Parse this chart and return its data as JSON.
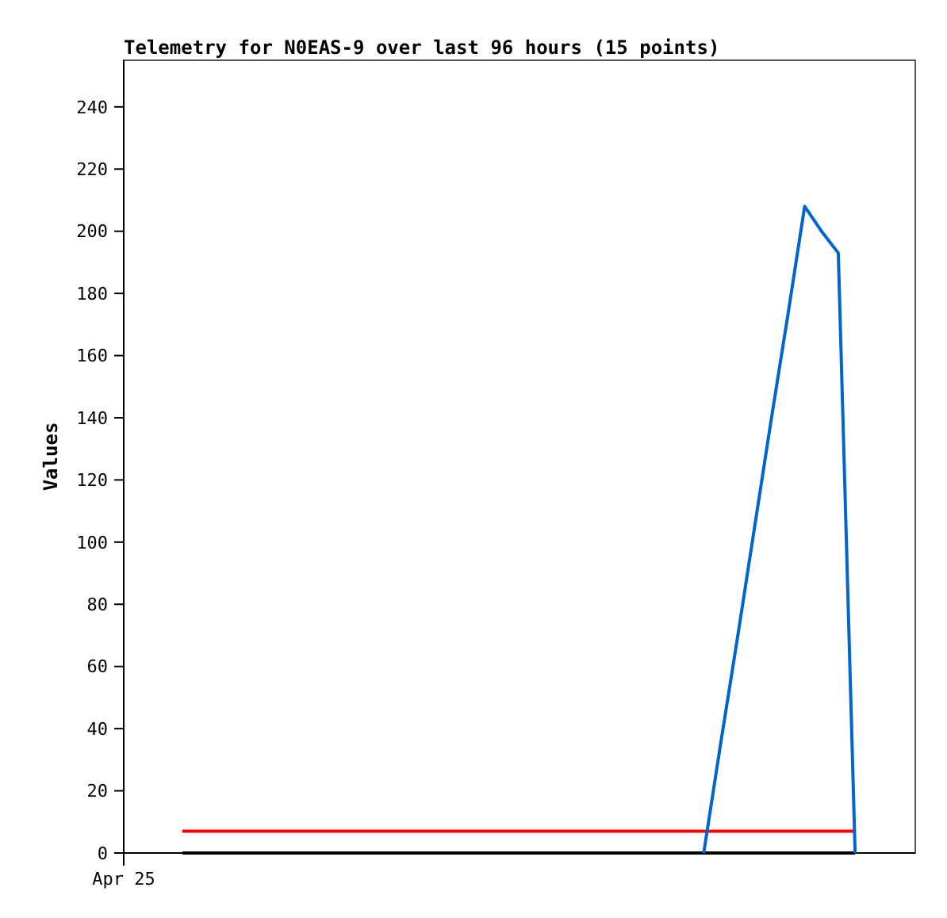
{
  "chart_data": {
    "type": "line",
    "title": "Telemetry for N0EAS-9 over last 96 hours (15 points)",
    "ylabel": "Values",
    "annotations": [
      "Apr 25"
    ],
    "categories": [
      null,
      null,
      null,
      null,
      null,
      null,
      null,
      null,
      null,
      null,
      null,
      null,
      null,
      null,
      null,
      null,
      null,
      null,
      null,
      null,
      null,
      null,
      null,
      null,
      null,
      null,
      null,
      null,
      null,
      null,
      null,
      null,
      null,
      null,
      null,
      null,
      null,
      null,
      null,
      null,
      null
    ],
    "ylim": [
      0,
      255
    ],
    "yticks": [
      0,
      20,
      40,
      60,
      80,
      100,
      120,
      140,
      160,
      180,
      200,
      220,
      240
    ],
    "marker": "none",
    "line_style": "solid",
    "series": [
      {
        "color": "#000000",
        "values": [
          0,
          0,
          0,
          0,
          0,
          0,
          0,
          0,
          0,
          0,
          0,
          0,
          0,
          0,
          0,
          0,
          0,
          0,
          0,
          0,
          0,
          0,
          0,
          0,
          0,
          0,
          0,
          0,
          0,
          0,
          0,
          0,
          0,
          0,
          0,
          0,
          0,
          0,
          0,
          0,
          0
        ]
      },
      {
        "color": "#ff0000",
        "values": [
          7,
          7,
          7,
          7,
          7,
          7,
          7,
          7,
          7,
          7,
          7,
          7,
          7,
          7,
          7,
          7,
          7,
          7,
          7,
          7,
          7,
          7,
          7,
          7,
          7,
          7,
          7,
          7,
          7,
          7,
          7,
          7,
          7,
          7,
          7,
          7,
          7,
          7,
          7,
          7,
          7
        ]
      },
      {
        "color": "#0066cc",
        "values": [
          null,
          null,
          null,
          null,
          null,
          null,
          null,
          null,
          null,
          null,
          null,
          null,
          null,
          null,
          null,
          null,
          null,
          null,
          null,
          null,
          null,
          null,
          null,
          null,
          null,
          null,
          null,
          null,
          null,
          null,
          null,
          0,
          35,
          69,
          104,
          139,
          173,
          208,
          200,
          193,
          0
        ]
      }
    ]
  }
}
